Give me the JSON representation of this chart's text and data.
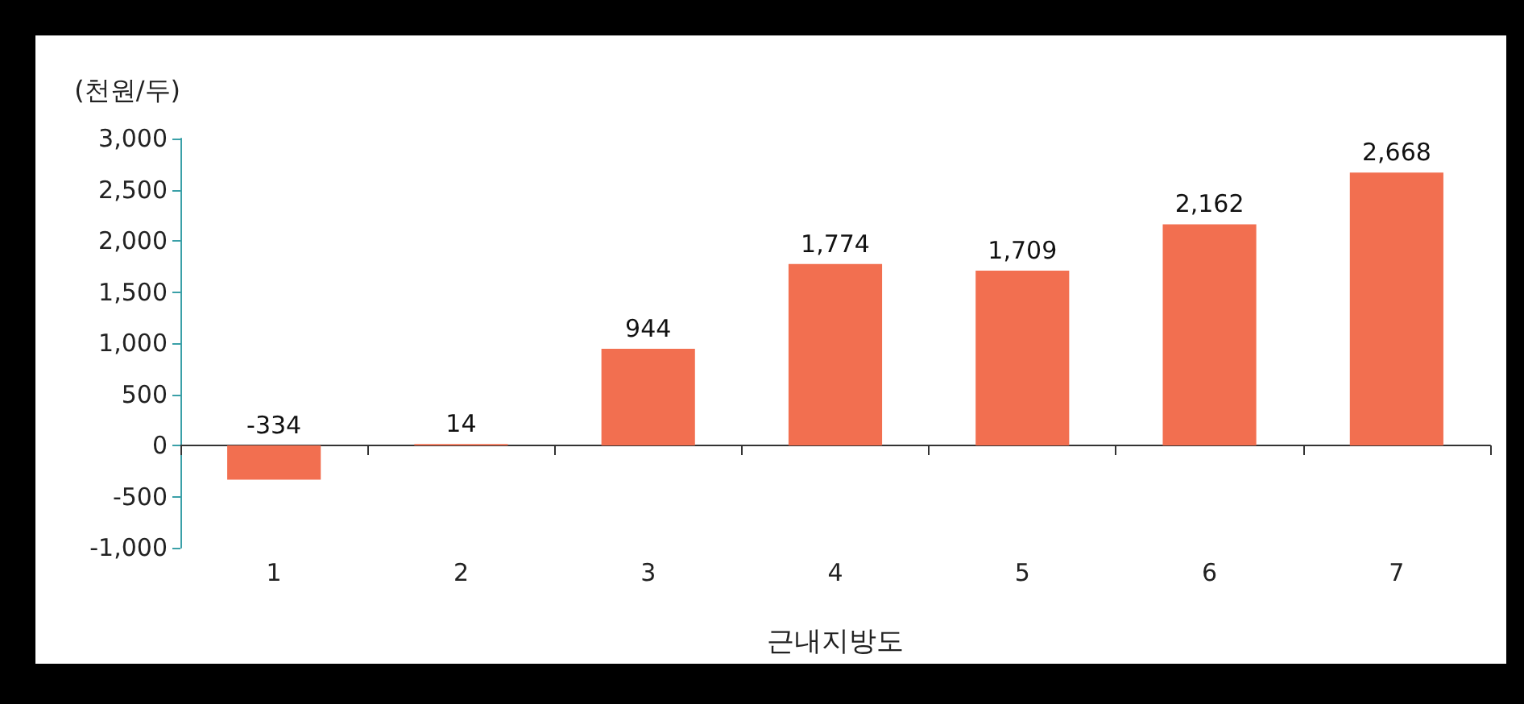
{
  "chart_data": {
    "type": "bar",
    "ylabel": "(천원/두)",
    "xlabel": "근내지방도",
    "categories": [
      "1",
      "2",
      "3",
      "4",
      "5",
      "6",
      "7"
    ],
    "values": [
      -334,
      14,
      944,
      1774,
      1709,
      2162,
      2668
    ],
    "value_labels": [
      "-334",
      "14",
      "944",
      "1,774",
      "1,709",
      "2,162",
      "2,668"
    ],
    "color": "#f26f50",
    "ylim": [
      -1000,
      3000
    ],
    "yticks": [
      {
        "value": -1000,
        "label": "-1,000"
      },
      -500,
      0,
      500,
      {
        "value": 1000,
        "label": "1,000"
      },
      {
        "value": 1500,
        "label": "1,500"
      },
      {
        "value": 2000,
        "label": "2,000"
      },
      {
        "value": 2500,
        "label": "2,500"
      },
      {
        "value": 3000,
        "label": "3,000"
      }
    ]
  }
}
